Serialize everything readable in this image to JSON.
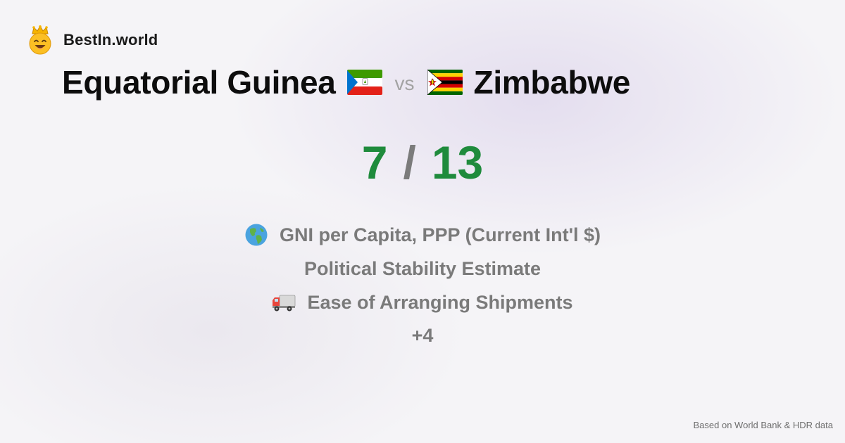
{
  "brand": {
    "name": "BestIn.world",
    "logo_icon": "crowned-smiley-icon"
  },
  "comparison": {
    "left_country": "Equatorial Guinea",
    "left_flag_icon": "equatorial-guinea-flag-icon",
    "vs_label": "vs",
    "right_country": "Zimbabwe",
    "right_flag_icon": "zimbabwe-flag-icon"
  },
  "score": {
    "left": "7",
    "separator": "/",
    "right": "13",
    "color": "#1f8b3c"
  },
  "metrics": [
    {
      "icon": "globe-icon",
      "label": "GNI per Capita, PPP (Current Int'l $)"
    },
    {
      "icon": "",
      "label": "Political Stability Estimate"
    },
    {
      "icon": "delivery-truck-icon",
      "label": "Ease of Arranging Shipments"
    }
  ],
  "more_label": "+4",
  "footer": "Based on World Bank & HDR data"
}
